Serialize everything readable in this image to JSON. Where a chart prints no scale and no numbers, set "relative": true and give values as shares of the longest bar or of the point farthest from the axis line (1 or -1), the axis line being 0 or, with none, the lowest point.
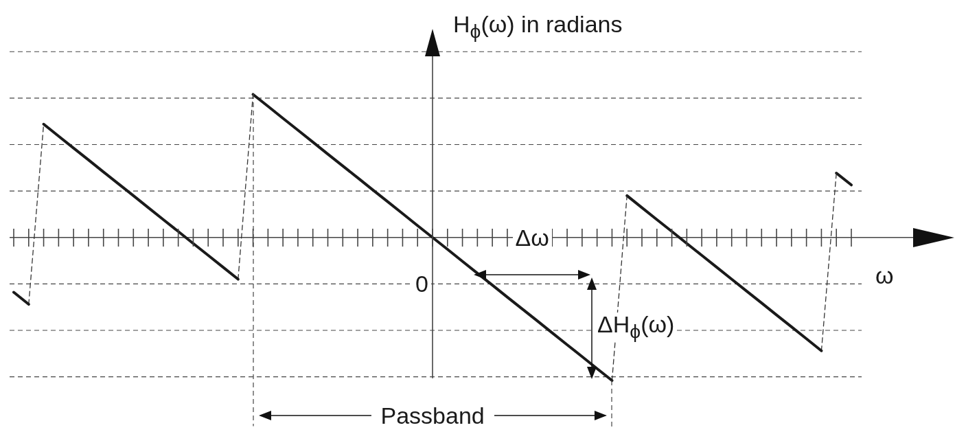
{
  "chart_data": {
    "type": "line",
    "relative": true,
    "ylabel": "H$_{ϕ}$(ω) in radians",
    "xlabel": "ω",
    "grid": "y",
    "marker": "none",
    "categories": [
      null,
      null,
      null,
      null,
      null,
      null,
      null,
      null,
      null,
      null,
      null,
      null,
      null,
      null,
      null,
      null,
      null,
      null,
      null,
      null,
      null,
      null,
      null,
      null,
      null,
      null,
      null,
      null,
      null,
      null,
      null,
      null,
      null,
      null,
      null,
      null,
      null,
      null,
      null,
      null,
      null,
      null,
      null,
      null,
      null,
      null,
      null,
      null,
      null,
      null,
      null,
      null,
      null,
      null,
      null,
      null,
      null
    ],
    "series": [
      {
        "color": "#1a1a1a",
        "line_style": "solid",
        "values": [
          -0.383,
          -0.467,
          null,
          null,
          null,
          null,
          null,
          null,
          null,
          null,
          null,
          null,
          null,
          null,
          null,
          null,
          null,
          null,
          null,
          null,
          null,
          null,
          null,
          null,
          null,
          null,
          null,
          null,
          null,
          null,
          null,
          null,
          null,
          null,
          null,
          null,
          null,
          null,
          null,
          null,
          null,
          null,
          null,
          null,
          null,
          null,
          null,
          null,
          null,
          null,
          null,
          null,
          null,
          null,
          null,
          null,
          null
        ]
      },
      {
        "color": "#333333",
        "line_style": "dashed",
        "values": [
          null,
          -0.467,
          0.792,
          null,
          null,
          null,
          null,
          null,
          null,
          null,
          null,
          null,
          null,
          null,
          null,
          null,
          null,
          null,
          null,
          null,
          null,
          null,
          null,
          null,
          null,
          null,
          null,
          null,
          null,
          null,
          null,
          null,
          null,
          null,
          null,
          null,
          null,
          null,
          null,
          null,
          null,
          null,
          null,
          null,
          null,
          null,
          null,
          null,
          null,
          null,
          null,
          null,
          null,
          null,
          null,
          null,
          null
        ]
      },
      {
        "color": "#1a1a1a",
        "line_style": "solid",
        "values": [
          null,
          null,
          0.792,
          0.708,
          0.625,
          0.542,
          0.458,
          0.375,
          0.292,
          0.208,
          0.125,
          0.042,
          -0.042,
          -0.125,
          -0.208,
          -0.292,
          null,
          null,
          null,
          null,
          null,
          null,
          null,
          null,
          null,
          null,
          null,
          null,
          null,
          null,
          null,
          null,
          null,
          null,
          null,
          null,
          null,
          null,
          null,
          null,
          null,
          null,
          null,
          null,
          null,
          null,
          null,
          null,
          null,
          null,
          null,
          null,
          null,
          null,
          null,
          null,
          null
        ]
      },
      {
        "color": "#333333",
        "line_style": "dashed",
        "values": [
          null,
          null,
          null,
          null,
          null,
          null,
          null,
          null,
          null,
          null,
          null,
          null,
          null,
          null,
          null,
          -0.292,
          1,
          null,
          null,
          null,
          null,
          null,
          null,
          null,
          null,
          null,
          null,
          null,
          null,
          null,
          null,
          null,
          null,
          null,
          null,
          null,
          null,
          null,
          null,
          null,
          null,
          null,
          null,
          null,
          null,
          null,
          null,
          null,
          null,
          null,
          null,
          null,
          null,
          null,
          null,
          null,
          null
        ]
      },
      {
        "color": "#1a1a1a",
        "line_style": "solid",
        "values": [
          null,
          null,
          null,
          null,
          null,
          null,
          null,
          null,
          null,
          null,
          null,
          null,
          null,
          null,
          null,
          null,
          1,
          0.917,
          0.833,
          0.75,
          0.667,
          0.583,
          0.5,
          0.417,
          0.333,
          0.25,
          0.167,
          0.083,
          0,
          -0.083,
          -0.167,
          -0.25,
          -0.333,
          -0.417,
          -0.5,
          -0.583,
          -0.667,
          -0.75,
          -0.833,
          -0.917,
          -1,
          null,
          null,
          null,
          null,
          null,
          null,
          null,
          null,
          null,
          null,
          null,
          null,
          null,
          null,
          null,
          null
        ]
      },
      {
        "color": "#333333",
        "line_style": "dashed",
        "values": [
          null,
          null,
          null,
          null,
          null,
          null,
          null,
          null,
          null,
          null,
          null,
          null,
          null,
          null,
          null,
          null,
          null,
          null,
          null,
          null,
          null,
          null,
          null,
          null,
          null,
          null,
          null,
          null,
          null,
          null,
          null,
          null,
          null,
          null,
          null,
          null,
          null,
          null,
          null,
          null,
          -1,
          0.292,
          null,
          null,
          null,
          null,
          null,
          null,
          null,
          null,
          null,
          null,
          null,
          null,
          null,
          null,
          null
        ]
      },
      {
        "color": "#1a1a1a",
        "line_style": "solid",
        "values": [
          null,
          null,
          null,
          null,
          null,
          null,
          null,
          null,
          null,
          null,
          null,
          null,
          null,
          null,
          null,
          null,
          null,
          null,
          null,
          null,
          null,
          null,
          null,
          null,
          null,
          null,
          null,
          null,
          null,
          null,
          null,
          null,
          null,
          null,
          null,
          null,
          null,
          null,
          null,
          null,
          null,
          0.292,
          0.208,
          0.125,
          0.042,
          -0.042,
          -0.125,
          -0.208,
          -0.292,
          -0.375,
          -0.458,
          -0.542,
          -0.625,
          -0.708,
          -0.792,
          null,
          null
        ]
      },
      {
        "color": "#333333",
        "line_style": "dashed",
        "values": [
          null,
          null,
          null,
          null,
          null,
          null,
          null,
          null,
          null,
          null,
          null,
          null,
          null,
          null,
          null,
          null,
          null,
          null,
          null,
          null,
          null,
          null,
          null,
          null,
          null,
          null,
          null,
          null,
          null,
          null,
          null,
          null,
          null,
          null,
          null,
          null,
          null,
          null,
          null,
          null,
          null,
          null,
          null,
          null,
          null,
          null,
          null,
          null,
          null,
          null,
          null,
          null,
          null,
          null,
          -0.792,
          0.45,
          null
        ]
      },
      {
        "color": "#1a1a1a",
        "line_style": "solid",
        "values": [
          null,
          null,
          null,
          null,
          null,
          null,
          null,
          null,
          null,
          null,
          null,
          null,
          null,
          null,
          null,
          null,
          null,
          null,
          null,
          null,
          null,
          null,
          null,
          null,
          null,
          null,
          null,
          null,
          null,
          null,
          null,
          null,
          null,
          null,
          null,
          null,
          null,
          null,
          null,
          null,
          null,
          null,
          null,
          null,
          null,
          null,
          null,
          null,
          null,
          null,
          null,
          null,
          null,
          null,
          null,
          0.45,
          0.367
        ]
      }
    ],
    "annotations": [
      "0",
      "Δω",
      "ΔH$_{ϕ}$(ω)",
      "Passband"
    ]
  }
}
